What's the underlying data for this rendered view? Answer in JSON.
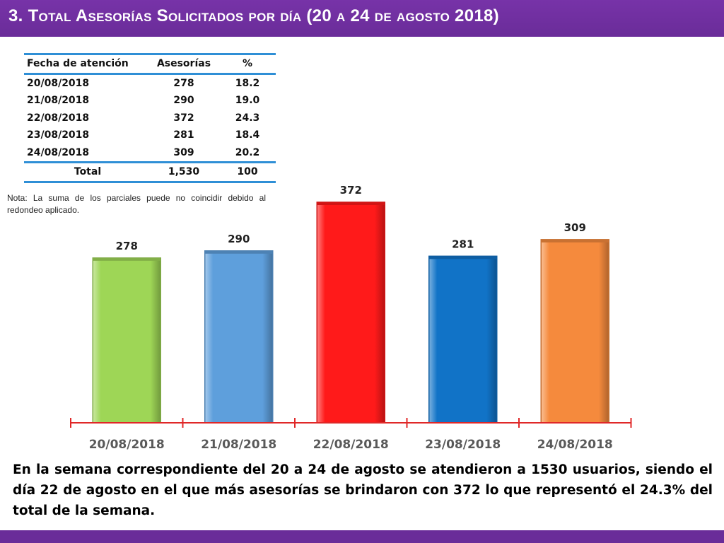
{
  "title": "3. Total Asesorías Solicitados por día (20 a 24 de agosto 2018)",
  "table": {
    "headers": [
      "Fecha de atención",
      "Asesorías",
      "%"
    ],
    "rows": [
      [
        "20/08/2018",
        "278",
        "18.2"
      ],
      [
        "21/08/2018",
        "290",
        "19.0"
      ],
      [
        "22/08/2018",
        "372",
        "24.3"
      ],
      [
        "23/08/2018",
        "281",
        "18.4"
      ],
      [
        "24/08/2018",
        "309",
        "20.2"
      ]
    ],
    "total": [
      "Total",
      "1,530",
      "100"
    ]
  },
  "note": "Nota: La suma de los parciales puede no coincidir debido al redondeo aplicado.",
  "summary": "En la semana correspondiente del 20 a 24 de agosto se atendieron a 1530 usuarios, siendo el día 22 de agosto en el que más asesorías se brindaron con 372 lo que representó el 24.3% del total de la semana.",
  "chart_data": {
    "type": "bar",
    "categories": [
      "20/08/2018",
      "21/08/2018",
      "22/08/2018",
      "23/08/2018",
      "24/08/2018"
    ],
    "values": [
      278,
      290,
      372,
      281,
      309
    ],
    "colors": [
      "#9ed656",
      "#5e9fdc",
      "#ff1a1a",
      "#1173c7",
      "#f58a3d"
    ],
    "axis_color": "#e02828",
    "title": "",
    "xlabel": "",
    "ylabel": ""
  }
}
